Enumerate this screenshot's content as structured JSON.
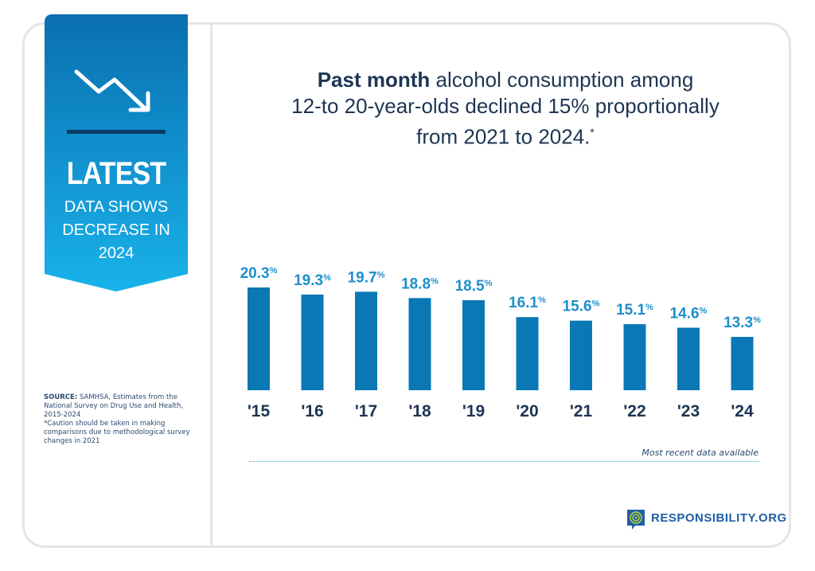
{
  "ribbon": {
    "title": "LATEST",
    "subtitle_lines": [
      "DATA SHOWS",
      "DECREASE IN",
      "2024"
    ],
    "icon": "trend-down-arrow-icon"
  },
  "headline": {
    "bold": "Past month",
    "rest_line1": " alcohol consumption among",
    "line2": "12-to 20-year-olds declined 15% proportionally",
    "line3": "from 2021 to 2024.",
    "asterisk": "*"
  },
  "source": {
    "label": "SOURCE:",
    "text": " SAMHSA, Estimates from the National Survey on Drug Use and Health, 2015-2024"
  },
  "caution": "*Caution should be taken in making comparisons due to methodological survey changes in 2021",
  "note": "Most recent data available",
  "brand": {
    "name": "RESPONSIBILITY.ORG",
    "icon": "target-speech-bubble-logo"
  },
  "colors": {
    "bar": "#0a78b5",
    "label": "#1e8fcc",
    "axis_text": "#1d3553",
    "ribbon_top": "#0a6fb0",
    "ribbon_bottom": "#19b2ea"
  },
  "chart_data": {
    "type": "bar",
    "categories": [
      "'15",
      "'16",
      "'17",
      "'18",
      "'19",
      "'20",
      "'21",
      "'22",
      "'23",
      "'24"
    ],
    "values": [
      20.3,
      19.3,
      19.7,
      18.8,
      18.5,
      16.1,
      15.6,
      15.1,
      14.6,
      13.3
    ],
    "data_labels": [
      "20.3",
      "19.3",
      "19.7",
      "18.8",
      "18.5",
      "16.1",
      "15.6",
      "15.1",
      "14.6",
      "13.3"
    ],
    "unit": "%",
    "title": "",
    "xlabel": "",
    "ylabel": "",
    "grid": false
  }
}
